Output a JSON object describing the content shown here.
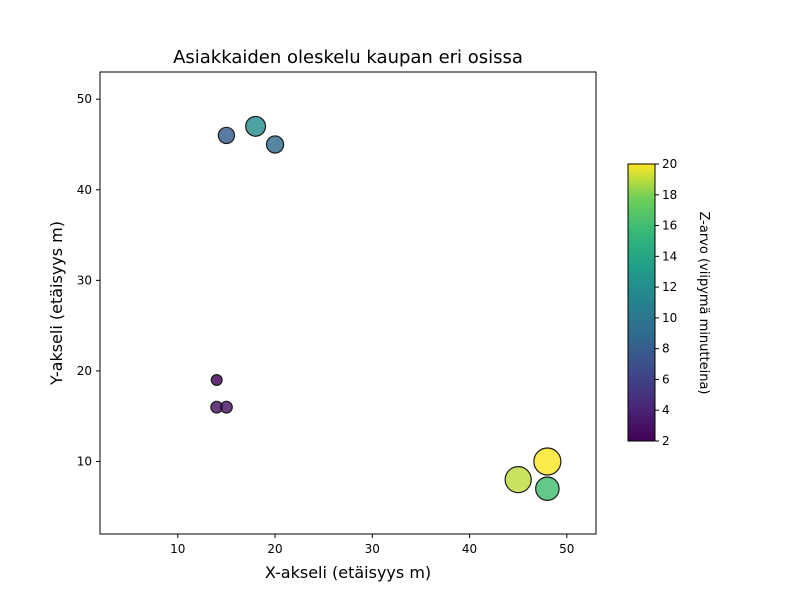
{
  "chart_data": {
    "type": "scatter",
    "title": "Asiakkaiden oleskelu kaupan eri osissa",
    "xlabel": "X-akseli (etäisyys m)",
    "ylabel": "Y-akseli (etäisyys m)",
    "xlim": [
      2,
      53
    ],
    "ylim": [
      2,
      53
    ],
    "xticks": [
      10,
      20,
      30,
      40,
      50
    ],
    "yticks": [
      10,
      20,
      30,
      40,
      50
    ],
    "grid": false,
    "colormap": "viridis",
    "colorbar": {
      "label": "Z-arvo (viipymä minutteina)",
      "range": [
        2,
        20
      ],
      "ticks": [
        2,
        4,
        6,
        8,
        10,
        12,
        14,
        16,
        18,
        20
      ]
    },
    "points": [
      {
        "x": 15,
        "y": 46,
        "z": 8
      },
      {
        "x": 18,
        "y": 47,
        "z": 12
      },
      {
        "x": 20,
        "y": 45,
        "z": 9
      },
      {
        "x": 14,
        "y": 19,
        "z": 2
      },
      {
        "x": 14,
        "y": 16,
        "z": 3
      },
      {
        "x": 15,
        "y": 16,
        "z": 3
      },
      {
        "x": 45,
        "y": 8,
        "z": 19
      },
      {
        "x": 48,
        "y": 10,
        "z": 20
      },
      {
        "x": 48,
        "y": 7,
        "z": 16
      }
    ]
  }
}
